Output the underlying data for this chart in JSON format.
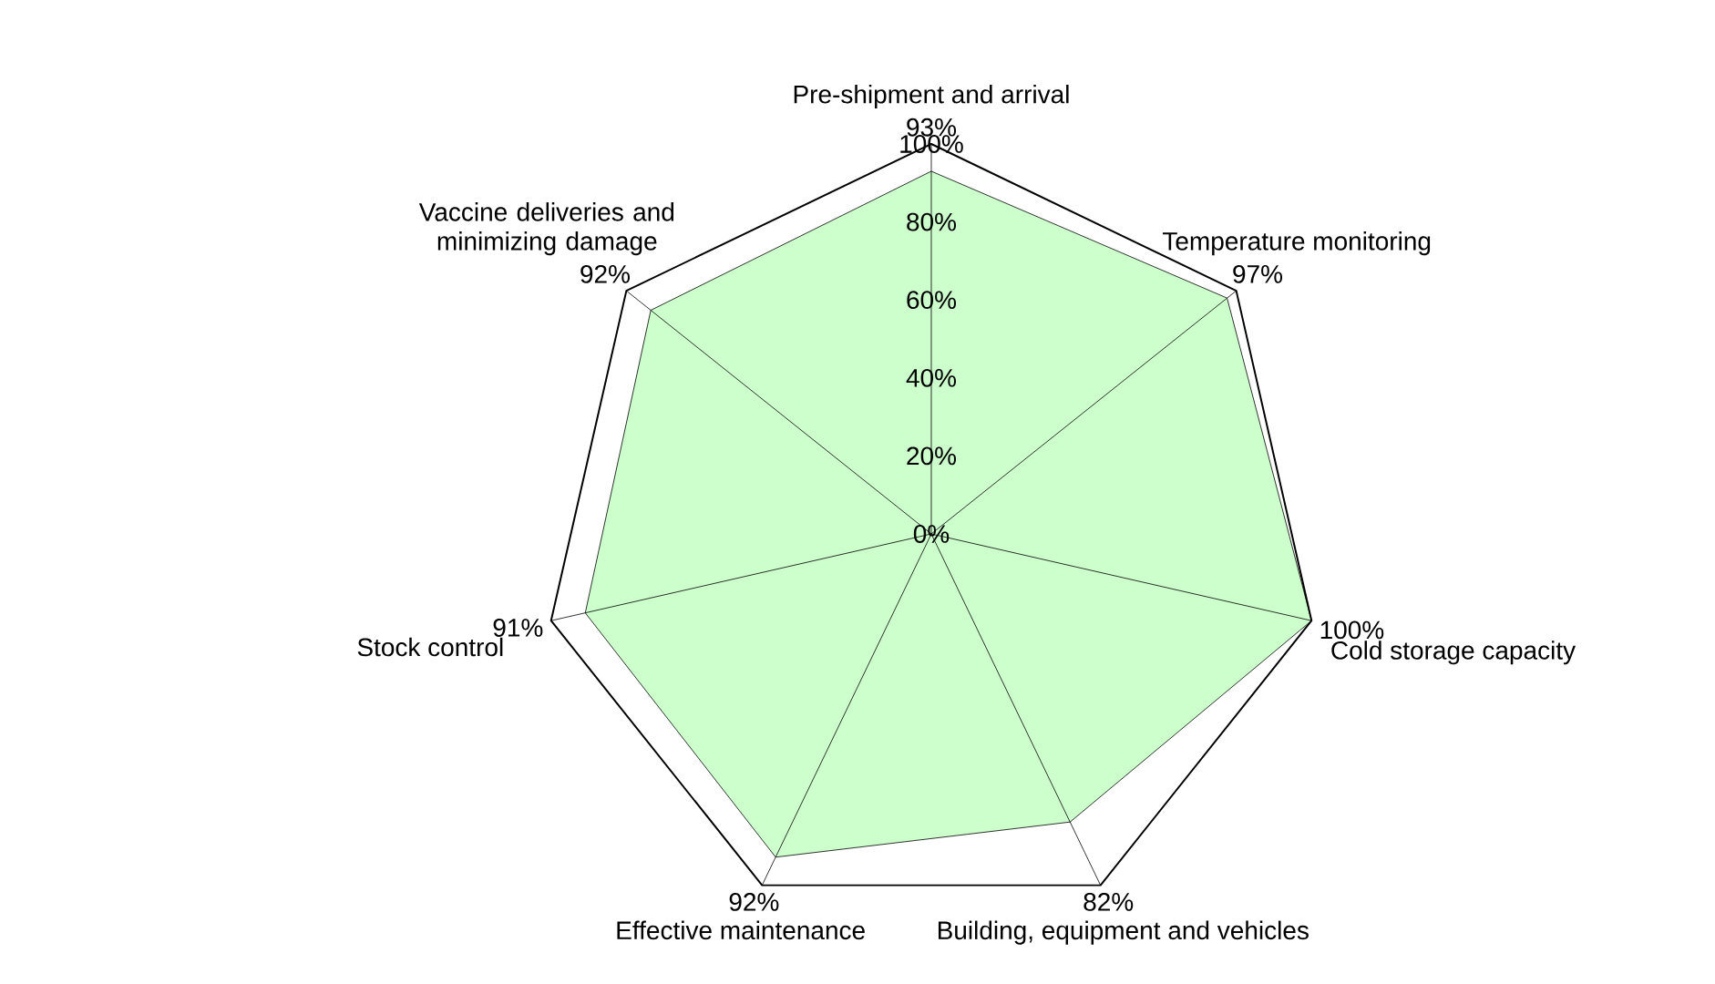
{
  "chart_data": {
    "type": "radar",
    "categories": [
      "Pre-shipment and arrival",
      "Temperature monitoring",
      "Cold storage capacity",
      "Building, equipment and vehicles",
      "Effective maintenance",
      "Stock control",
      "Vaccine deliveries and minimizing damage"
    ],
    "series": [
      {
        "color": "#ccffcc",
        "values": [
          93,
          97,
          100,
          82,
          92,
          91,
          92
        ],
        "value_labels": [
          "93%",
          "97%",
          "100%",
          "82%",
          "92%",
          "91%",
          "92%"
        ]
      }
    ],
    "ylim": [
      0,
      100
    ],
    "yticks": [
      {
        "value": 0,
        "label": "0%"
      },
      {
        "value": 20,
        "label": "20%"
      },
      {
        "value": 40,
        "label": "40%"
      },
      {
        "value": 60,
        "label": "60%"
      },
      {
        "value": 80,
        "label": "80%"
      },
      {
        "value": 100,
        "label": "100%"
      }
    ],
    "grid": false
  }
}
